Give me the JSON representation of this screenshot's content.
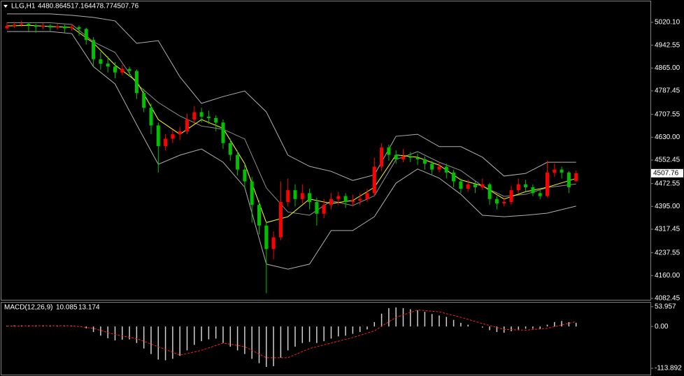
{
  "chart_data": [
    {
      "type": "candlestick",
      "title": "LLG,H1",
      "up_color": "#ff0000",
      "down_color": "#00c000",
      "candles": [
        [
          5000,
          5020,
          4995,
          5008
        ],
        [
          5008,
          5022,
          5000,
          5012
        ],
        [
          5012,
          5025,
          5005,
          5015
        ],
        [
          5015,
          5020,
          4990,
          5010
        ],
        [
          5010,
          5015,
          4985,
          5005
        ],
        [
          5005,
          5018,
          4998,
          5009
        ],
        [
          5009,
          5014,
          4990,
          5003
        ],
        [
          5003,
          5016,
          4995,
          5006
        ],
        [
          5006,
          5012,
          4985,
          5000
        ],
        [
          5000,
          5015,
          4992,
          5004
        ],
        [
          5004,
          5010,
          4975,
          4998
        ],
        [
          4998,
          5002,
          4945,
          4960
        ],
        [
          4960,
          4970,
          4870,
          4895
        ],
        [
          4895,
          4920,
          4860,
          4880
        ],
        [
          4880,
          4905,
          4850,
          4870
        ],
        [
          4870,
          4885,
          4830,
          4850
        ],
        [
          4850,
          4875,
          4840,
          4862
        ],
        [
          4862,
          4870,
          4835,
          4855
        ],
        [
          4855,
          4860,
          4760,
          4780
        ],
        [
          4780,
          4795,
          4715,
          4730
        ],
        [
          4730,
          4745,
          4640,
          4670
        ],
        [
          4670,
          4680,
          4510,
          4600
        ],
        [
          4600,
          4640,
          4585,
          4625
        ],
        [
          4625,
          4655,
          4610,
          4640
        ],
        [
          4640,
          4665,
          4620,
          4650
        ],
        [
          4650,
          4710,
          4640,
          4690
        ],
        [
          4690,
          4735,
          4675,
          4715
        ],
        [
          4715,
          4730,
          4680,
          4700
        ],
        [
          4700,
          4720,
          4675,
          4695
        ],
        [
          4695,
          4705,
          4650,
          4680
        ],
        [
          4680,
          4690,
          4590,
          4610
        ],
        [
          4610,
          4625,
          4550,
          4570
        ],
        [
          4570,
          4585,
          4500,
          4520
        ],
        [
          4520,
          4540,
          4455,
          4480
        ],
        [
          4480,
          4495,
          4340,
          4400
        ],
        [
          4400,
          4415,
          4300,
          4330
        ],
        [
          4330,
          4345,
          4100,
          4250
        ],
        [
          4250,
          4310,
          4215,
          4290
        ],
        [
          4290,
          4480,
          4280,
          4410
        ],
        [
          4410,
          4490,
          4395,
          4450
        ],
        [
          4450,
          4470,
          4395,
          4420
        ],
        [
          4420,
          4470,
          4405,
          4440
        ],
        [
          4440,
          4455,
          4385,
          4410
        ],
        [
          4410,
          4425,
          4330,
          4370
        ],
        [
          4370,
          4420,
          4355,
          4400
        ],
        [
          4400,
          4440,
          4385,
          4420
        ],
        [
          4420,
          4445,
          4400,
          4430
        ],
        [
          4430,
          4440,
          4390,
          4410
        ],
        [
          4410,
          4435,
          4395,
          4415
        ],
        [
          4415,
          4440,
          4400,
          4420
        ],
        [
          4420,
          4455,
          4410,
          4440
        ],
        [
          4440,
          4560,
          4430,
          4530
        ],
        [
          4530,
          4610,
          4515,
          4595
        ],
        [
          4595,
          4605,
          4550,
          4570
        ],
        [
          4570,
          4585,
          4540,
          4555
        ],
        [
          4555,
          4590,
          4545,
          4565
        ],
        [
          4565,
          4580,
          4545,
          4560
        ],
        [
          4560,
          4575,
          4535,
          4555
        ],
        [
          4555,
          4565,
          4520,
          4540
        ],
        [
          4540,
          4550,
          4500,
          4520
        ],
        [
          4520,
          4545,
          4510,
          4530
        ],
        [
          4530,
          4540,
          4490,
          4510
        ],
        [
          4510,
          4520,
          4460,
          4480
        ],
        [
          4480,
          4490,
          4440,
          4455
        ],
        [
          4455,
          4485,
          4445,
          4470
        ],
        [
          4470,
          4480,
          4440,
          4460
        ],
        [
          4460,
          4490,
          4450,
          4470
        ],
        [
          4470,
          4475,
          4400,
          4420
        ],
        [
          4420,
          4430,
          4385,
          4405
        ],
        [
          4405,
          4425,
          4395,
          4410
        ],
        [
          4410,
          4465,
          4400,
          4450
        ],
        [
          4450,
          4490,
          4440,
          4470
        ],
        [
          4470,
          4485,
          4445,
          4460
        ],
        [
          4460,
          4470,
          4430,
          4440
        ],
        [
          4440,
          4450,
          4420,
          4430
        ],
        [
          4430,
          4550,
          4425,
          4510
        ],
        [
          4510,
          4540,
          4495,
          4520
        ],
        [
          4520,
          4530,
          4490,
          4510
        ],
        [
          4510,
          4515,
          4440,
          4460
        ],
        [
          4480.86,
          4517.16,
          4478.77,
          4507.76
        ]
      ],
      "overlay_x": [
        0,
        3,
        6,
        9,
        12,
        15,
        18,
        21,
        24,
        27,
        30,
        33,
        36,
        39,
        42,
        45,
        48,
        51,
        54,
        57,
        60,
        63,
        66,
        69,
        72,
        75,
        79
      ],
      "overlays": [
        {
          "color": "#b0b0b0",
          "values": [
            5049,
            5049,
            5049,
            5044,
            5037,
            5025,
            4949,
            4958,
            4835,
            4745,
            4768,
            4787,
            4716,
            4569,
            4531,
            4514,
            4483,
            4502,
            4633,
            4640,
            4598,
            4598,
            4562,
            4498,
            4507,
            4545,
            4545
          ]
        },
        {
          "color": "#909090",
          "values": [
            5019,
            5019,
            5019,
            5013,
            4954,
            4918,
            4811,
            4748,
            4702,
            4668,
            4657,
            4624,
            4458,
            4376,
            4365,
            4414,
            4398,
            4431,
            4554,
            4581,
            4545,
            4517,
            4464,
            4429,
            4436,
            4459,
            4471
          ]
        },
        {
          "color": "#b0b0b0",
          "values": [
            4989,
            4989,
            4989,
            4982,
            4870,
            4811,
            4673,
            4538,
            4569,
            4590,
            4545,
            4460,
            4199,
            4182,
            4199,
            4313,
            4313,
            4360,
            4474,
            4522,
            4491,
            4436,
            4365,
            4360,
            4365,
            4372,
            4396
          ]
        },
        {
          "color": "#ffff00",
          "values": [
            5008,
            5010,
            5006,
            5003,
            4950,
            4875,
            4820,
            4690,
            4640,
            4690,
            4660,
            4540,
            4340,
            4360,
            4420,
            4405,
            4415,
            4460,
            4570,
            4562,
            4535,
            4485,
            4465,
            4420,
            4445,
            4460,
            4490
          ]
        }
      ],
      "ylim": [
        4075.3,
        5091.3
      ],
      "yticks": [
        {
          "value": 5020.1,
          "label": "5020.10"
        },
        4942.55,
        {
          "value": 4865,
          "label": "4865.00"
        },
        4787.45,
        4707.55,
        {
          "value": 4630,
          "label": "4630.00"
        },
        4552.45,
        4472.55,
        {
          "value": 4395,
          "label": "4395.00"
        },
        4317.45,
        4237.55,
        {
          "value": 4160,
          "label": "4160.00"
        },
        4082.45
      ]
    },
    {
      "type": "macd",
      "title": "MACD(12,26,9)",
      "histogram_color": "#d0d0d0",
      "histogram": [
        2,
        3,
        3,
        2,
        2,
        3,
        2,
        2,
        1,
        1,
        0,
        -5,
        -15,
        -25,
        -32,
        -38,
        -36,
        -35,
        -45,
        -60,
        -75,
        -90,
        -92,
        -88,
        -80,
        -65,
        -50,
        -40,
        -35,
        -33,
        -45,
        -55,
        -65,
        -75,
        -88,
        -100,
        -110,
        -108,
        -85,
        -65,
        -55,
        -45,
        -42,
        -45,
        -40,
        -33,
        -27,
        -25,
        -20,
        -15,
        -8,
        12,
        35,
        50,
        52,
        50,
        47,
        44,
        40,
        34,
        30,
        26,
        18,
        10,
        5,
        0,
        -3,
        -10,
        -15,
        -17,
        -13,
        -8,
        -6,
        -6,
        -7,
        5,
        12,
        15,
        12,
        10.085
      ],
      "signal": {
        "color": "#ff2020",
        "dashed": true,
        "x": [
          0,
          3,
          6,
          9,
          12,
          15,
          18,
          21,
          24,
          27,
          30,
          33,
          36,
          39,
          42,
          45,
          48,
          51,
          54,
          57,
          60,
          63,
          66,
          69,
          72,
          75,
          79
        ],
        "values": [
          1,
          2,
          2,
          2,
          -5,
          -22,
          -33,
          -55,
          -78,
          -65,
          -45,
          -55,
          -85,
          -85,
          -60,
          -45,
          -30,
          -12,
          25,
          45,
          40,
          25,
          8,
          -8,
          -10,
          -5,
          13.174
        ]
      },
      "ylim": [
        -131,
        65
      ],
      "yticks": [
        53.957,
        {
          "value": 0,
          "label": "0.00"
        },
        -113.892
      ]
    }
  ]
}
